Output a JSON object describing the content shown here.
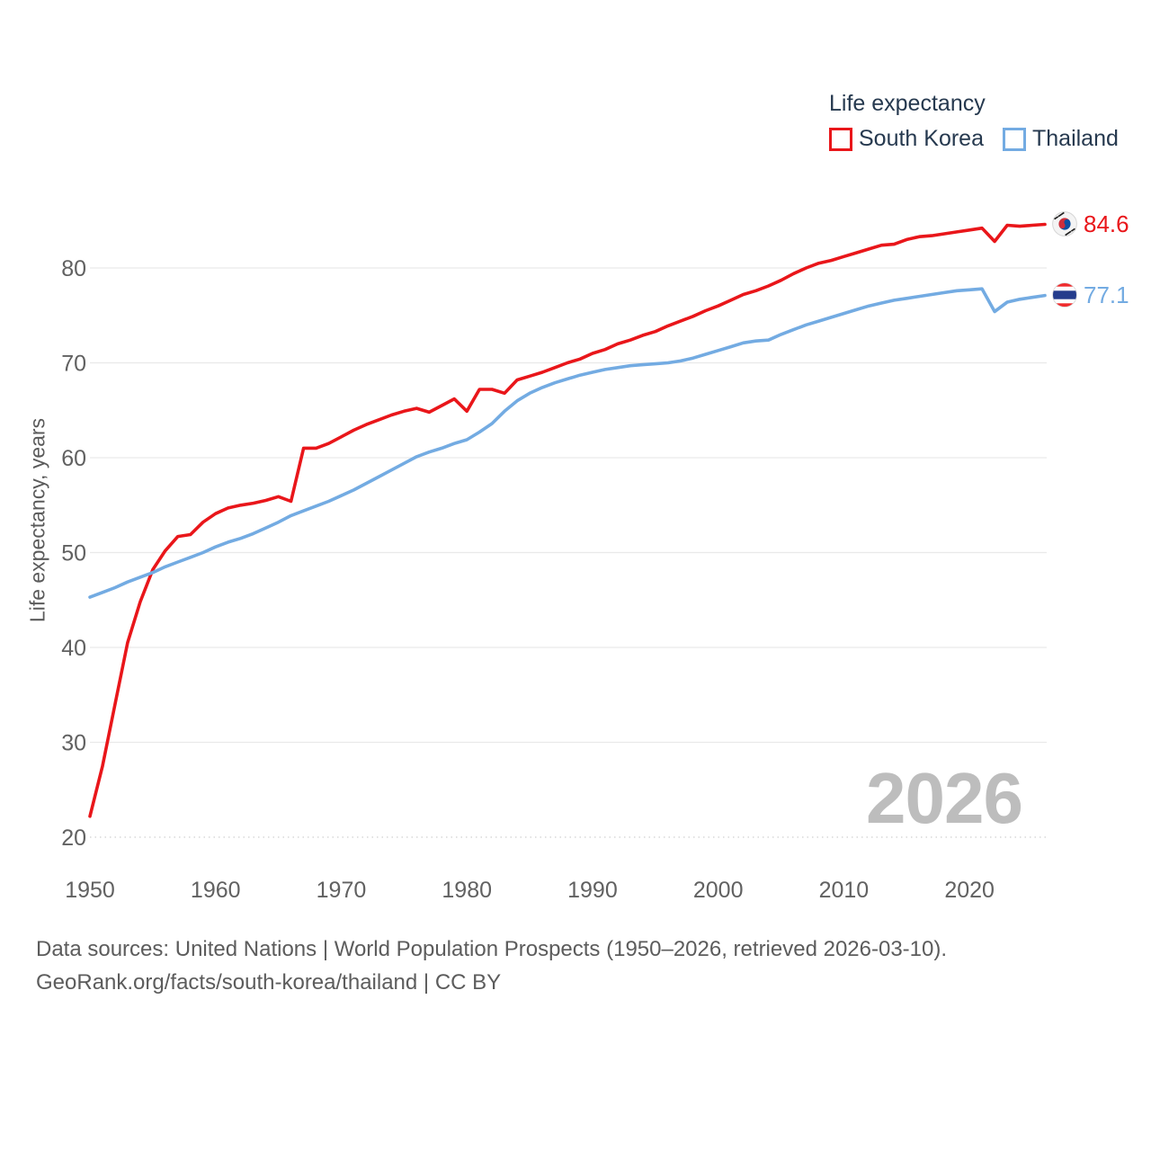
{
  "legend": {
    "title": "Life expectancy",
    "items": [
      {
        "label": "South Korea",
        "color": "#e9161a"
      },
      {
        "label": "Thailand",
        "color": "#73abe2"
      }
    ]
  },
  "y_axis": {
    "title": "Life expectancy, years"
  },
  "end_labels": {
    "south_korea": "84.6",
    "thailand": "77.1"
  },
  "watermark": "2026",
  "footer": {
    "line1": "Data sources: United Nations | World Population Prospects (1950–2026, retrieved 2026-03-10).",
    "line2": "GeoRank.org/facts/south-korea/thailand | CC BY"
  },
  "chart_data": {
    "type": "line",
    "title": "Life expectancy",
    "xlabel": "",
    "ylabel": "Life expectancy, years",
    "x_start": 1950,
    "x_end": 2026,
    "xticks": [
      1950,
      1960,
      1970,
      1980,
      1990,
      2000,
      2010,
      2020
    ],
    "yticks": [
      20,
      30,
      40,
      50,
      60,
      70,
      80
    ],
    "ylim": [
      20,
      86
    ],
    "grid": true,
    "legend_position": "top-right",
    "series": [
      {
        "name": "South Korea",
        "color": "#e9161a",
        "end_value": 84.6,
        "values": [
          22.2,
          27.5,
          34.0,
          40.5,
          44.8,
          48.2,
          50.2,
          51.7,
          51.9,
          53.2,
          54.1,
          54.7,
          55.0,
          55.2,
          55.5,
          55.9,
          55.4,
          61.0,
          61.0,
          61.5,
          62.2,
          62.9,
          63.5,
          64.0,
          64.5,
          64.9,
          65.2,
          64.8,
          65.5,
          66.2,
          64.9,
          67.2,
          67.2,
          66.8,
          68.2,
          68.6,
          69.0,
          69.5,
          70.0,
          70.4,
          71.0,
          71.4,
          72.0,
          72.4,
          72.9,
          73.3,
          73.9,
          74.4,
          74.9,
          75.5,
          76.0,
          76.6,
          77.2,
          77.6,
          78.1,
          78.7,
          79.4,
          80.0,
          80.5,
          80.8,
          81.2,
          81.6,
          82.0,
          82.4,
          82.5,
          83.0,
          83.3,
          83.4,
          83.6,
          83.8,
          84.0,
          84.2,
          82.8,
          84.5,
          84.4,
          84.5,
          84.6
        ]
      },
      {
        "name": "Thailand",
        "color": "#73abe2",
        "end_value": 77.1,
        "values": [
          45.3,
          45.8,
          46.3,
          46.9,
          47.4,
          47.9,
          48.5,
          49.0,
          49.5,
          50.0,
          50.6,
          51.1,
          51.5,
          52.0,
          52.6,
          53.2,
          53.9,
          54.4,
          54.9,
          55.4,
          56.0,
          56.6,
          57.3,
          58.0,
          58.7,
          59.4,
          60.1,
          60.6,
          61.0,
          61.5,
          61.9,
          62.7,
          63.6,
          64.9,
          66.0,
          66.8,
          67.4,
          67.9,
          68.3,
          68.7,
          69.0,
          69.3,
          69.5,
          69.7,
          69.8,
          69.9,
          70.0,
          70.2,
          70.5,
          70.9,
          71.3,
          71.7,
          72.1,
          72.3,
          72.4,
          73.0,
          73.5,
          74.0,
          74.4,
          74.8,
          75.2,
          75.6,
          76.0,
          76.3,
          76.6,
          76.8,
          77.0,
          77.2,
          77.4,
          77.6,
          77.7,
          77.8,
          75.4,
          76.4,
          76.7,
          76.9,
          77.1
        ]
      }
    ]
  }
}
